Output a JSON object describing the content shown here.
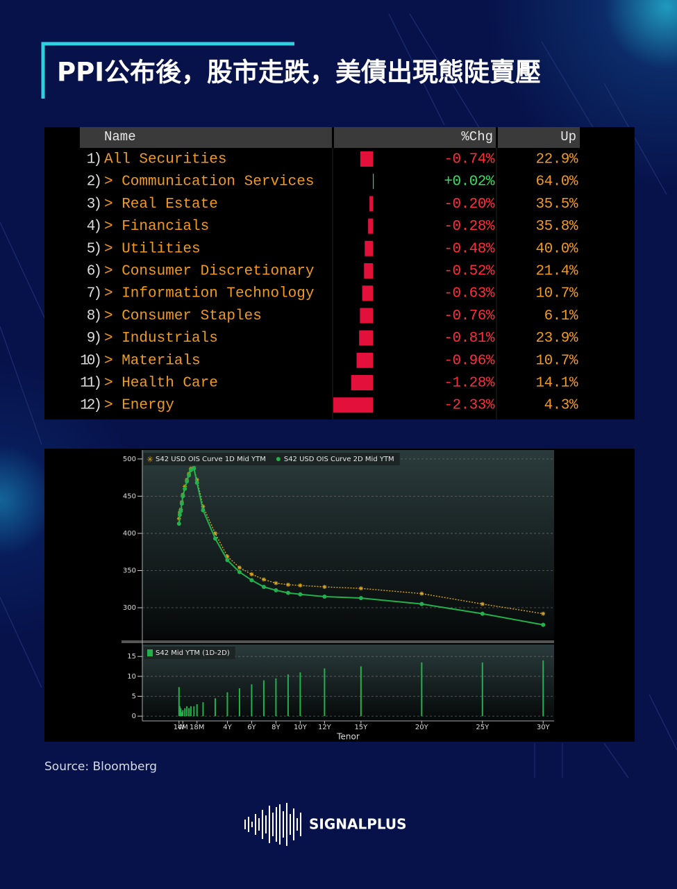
{
  "title": "PPI公布後，股市走跌，美債出現態陡賣壓",
  "table": {
    "columns": [
      "Name",
      "%Chg",
      "Up"
    ],
    "rows": [
      {
        "rank": "1)",
        "name": "All Securities",
        "chg": {
          "value": -0.74,
          "label": "-0.74%"
        },
        "up": "22.9%"
      },
      {
        "rank": "2)",
        "name": "> Communication Services",
        "chg": {
          "value": 0.02,
          "label": "+0.02%"
        },
        "up": "64.0%"
      },
      {
        "rank": "3)",
        "name": "> Real Estate",
        "chg": {
          "value": -0.2,
          "label": "-0.20%"
        },
        "up": "35.5%"
      },
      {
        "rank": "4)",
        "name": "> Financials",
        "chg": {
          "value": -0.28,
          "label": "-0.28%"
        },
        "up": "35.8%"
      },
      {
        "rank": "5)",
        "name": "> Utilities",
        "chg": {
          "value": -0.48,
          "label": "-0.48%"
        },
        "up": "40.0%"
      },
      {
        "rank": "6)",
        "name": "> Consumer Discretionary",
        "chg": {
          "value": -0.52,
          "label": "-0.52%"
        },
        "up": "21.4%"
      },
      {
        "rank": "7)",
        "name": "> Information Technology",
        "chg": {
          "value": -0.63,
          "label": "-0.63%"
        },
        "up": "10.7%"
      },
      {
        "rank": "8)",
        "name": "> Consumer Staples",
        "chg": {
          "value": -0.76,
          "label": "-0.76%"
        },
        "up": "6.1%"
      },
      {
        "rank": "9)",
        "name": "> Industrials",
        "chg": {
          "value": -0.81,
          "label": "-0.81%"
        },
        "up": "23.9%"
      },
      {
        "rank": "10)",
        "name": "> Materials",
        "chg": {
          "value": -0.96,
          "label": "-0.96%"
        },
        "up": "10.7%"
      },
      {
        "rank": "11)",
        "name": "> Health Care",
        "chg": {
          "value": -1.28,
          "label": "-1.28%"
        },
        "up": "14.1%"
      },
      {
        "rank": "12)",
        "name": "> Energy",
        "chg": {
          "value": -2.33,
          "label": "-2.33%"
        },
        "up": "4.3%"
      }
    ]
  },
  "chart_data": [
    {
      "type": "line",
      "x": [
        0.0192,
        0.0833,
        0.1667,
        0.25,
        0.3333,
        0.5,
        0.6667,
        0.8333,
        1,
        1.25,
        1.5,
        2,
        3,
        4,
        5,
        6,
        7,
        8,
        9,
        10,
        12,
        15,
        20,
        25,
        30
      ],
      "series": [
        {
          "name": "S42 USD OIS Curve 1D Mid YTM",
          "color": "#d9a521",
          "marker": "star",
          "line_style": "dotted",
          "values": [
            420,
            428,
            432,
            442,
            452,
            463,
            472,
            480,
            487,
            488,
            472,
            436,
            400,
            369,
            354,
            345,
            338,
            333,
            331,
            330,
            328,
            326,
            319,
            305,
            292
          ]
        },
        {
          "name": "S42 USD OIS Curve 2D Mid YTM",
          "color": "#22b14c",
          "marker": "circle",
          "line_style": "solid",
          "values": [
            413,
            425,
            430,
            440,
            450,
            460,
            470,
            478,
            485,
            487,
            468,
            431,
            393,
            364,
            348,
            337,
            328,
            323.5,
            320,
            318,
            315,
            313,
            305,
            292,
            277
          ]
        }
      ],
      "xlim": [
        -3,
        30.9
      ],
      "ylim": [
        258,
        512
      ],
      "yticks": [
        300,
        350,
        400,
        450,
        500
      ],
      "grid": true
    },
    {
      "type": "bar",
      "x": [
        0.0192,
        0.0833,
        0.1667,
        0.25,
        0.3333,
        0.5,
        0.6667,
        0.8333,
        1,
        1.25,
        1.5,
        2,
        3,
        4,
        5,
        6,
        7,
        8,
        9,
        10,
        12,
        15,
        20,
        25,
        30
      ],
      "series": [
        {
          "name": "S42 Mid YTM (1D-2D)",
          "color": "#22b14c",
          "values": [
            7.3,
            2.5,
            2,
            1,
            1.5,
            2,
            2.5,
            2,
            2.5,
            2.5,
            3,
            3.5,
            4.5,
            6,
            7,
            8,
            9,
            9.5,
            10.5,
            11,
            12,
            12.5,
            13.5,
            13.5,
            14
          ]
        }
      ],
      "xlim": [
        -3,
        30.9
      ],
      "ylim": [
        -1.2,
        18
      ],
      "yticks": [
        0,
        5,
        10,
        15
      ],
      "grid": true,
      "xticks": [
        {
          "value": 0.0192,
          "label": "1W"
        },
        {
          "value": 0.3333,
          "label": "4M"
        },
        {
          "value": 1.5,
          "label": "18M"
        },
        {
          "value": 4,
          "label": "4Y"
        },
        {
          "value": 6,
          "label": "6Y"
        },
        {
          "value": 8,
          "label": "8Y"
        },
        {
          "value": 10,
          "label": "10Y"
        },
        {
          "value": 12,
          "label": "12Y"
        },
        {
          "value": 15,
          "label": "15Y"
        },
        {
          "value": 20,
          "label": "20Y"
        },
        {
          "value": 25,
          "label": "25Y"
        },
        {
          "value": 30,
          "label": "30Y"
        }
      ],
      "xlabel": "Tenor"
    }
  ],
  "source": "Source:  Bloomberg",
  "brand": "SIGNALPLUS"
}
